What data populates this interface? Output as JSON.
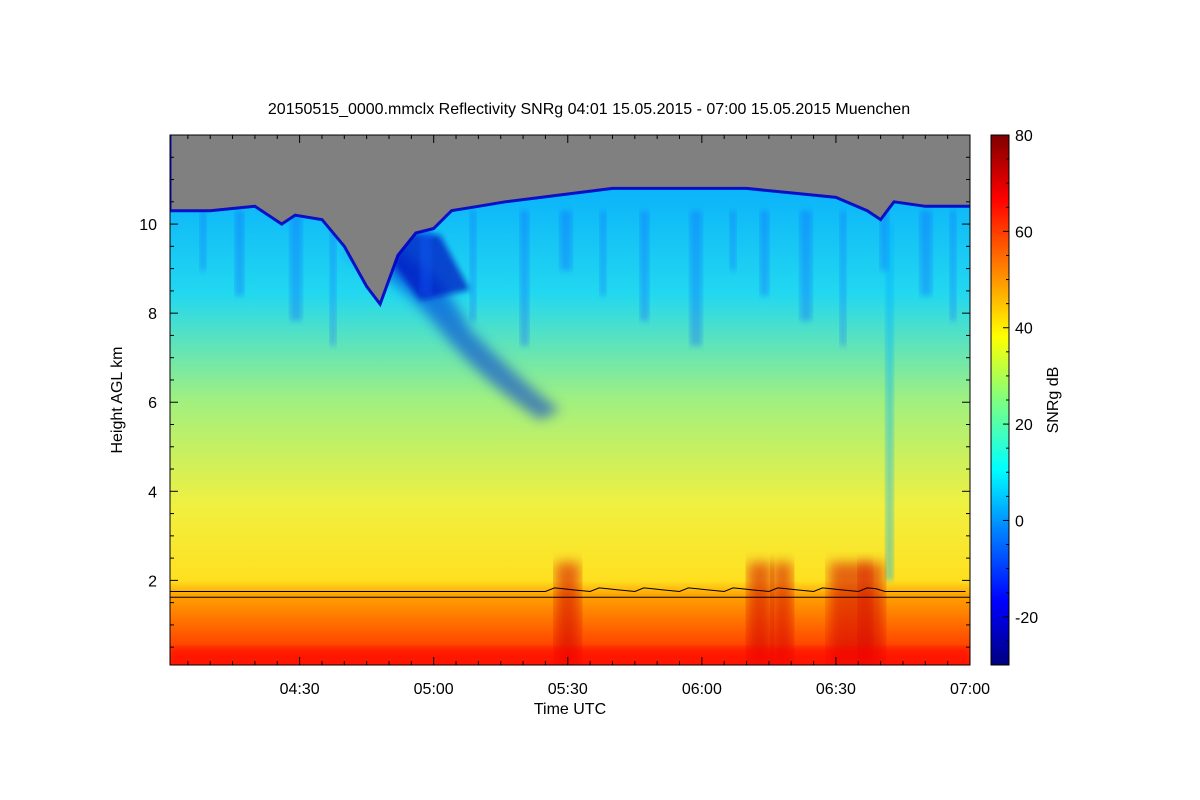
{
  "chart_data": {
    "type": "heatmap",
    "title": "20150515_0000.mmclx Reflectivity SNRg   04:01 15.05.2015 - 07:00 15.05.2015 Muenchen",
    "xlabel": "Time UTC",
    "ylabel": "Height AGL km",
    "colorbar_label": "SNRg dB",
    "x_ticks": [
      "04:30",
      "05:00",
      "05:30",
      "06:00",
      "06:30",
      "07:00"
    ],
    "x_tick_minutes": [
      30,
      60,
      90,
      120,
      150,
      180
    ],
    "xlim_minutes": [
      1,
      180
    ],
    "y_ticks": [
      2,
      4,
      6,
      8,
      10
    ],
    "ylim": [
      0.1,
      12
    ],
    "colorbar_ticks": [
      -20,
      0,
      20,
      40,
      60,
      80
    ],
    "colorbar_range": [
      -30,
      80
    ],
    "no_signal_color": "#808080",
    "colormap": [
      "#00007f",
      "#0000ff",
      "#007fff",
      "#00ffff",
      "#7fff7f",
      "#ffff00",
      "#ff7f00",
      "#ff0000",
      "#7f0000"
    ],
    "line_color": "#000000",
    "grid": false
  }
}
